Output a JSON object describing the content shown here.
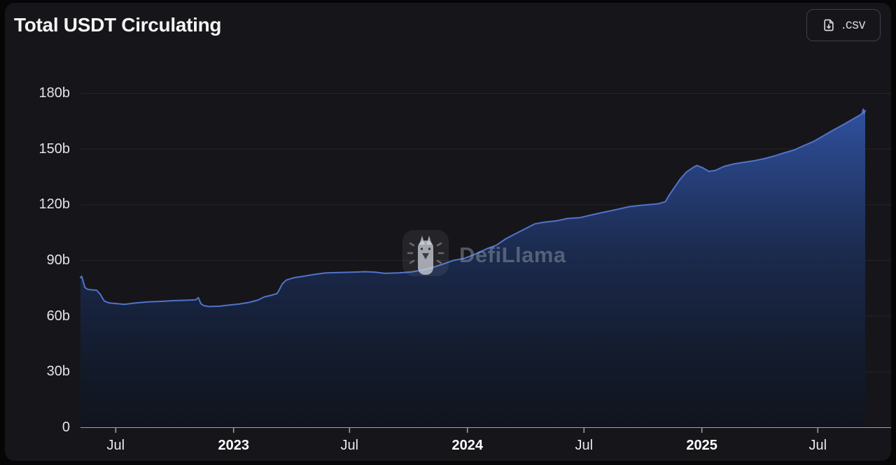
{
  "header": {
    "title": "Total USDT Circulating",
    "csv_button_label": ".csv"
  },
  "watermark": {
    "label": "DefiLlama"
  },
  "colors": {
    "card_bg": "#16161a",
    "title": "#f4f4f5",
    "line": "#5273cb",
    "area_top": "#30519e",
    "area_mid": "#1b2a4e",
    "area_low": "#131b2c",
    "area_bottom": "#10141d",
    "axis": "#a1a1aa",
    "grid": "#232329",
    "tick_label": "#e4e4e7"
  },
  "chart_data": {
    "type": "area",
    "title": "Total USDT Circulating",
    "xlabel": "",
    "ylabel": "",
    "unit": "billion USD",
    "ylim": [
      0,
      180
    ],
    "grid": true,
    "legend": false,
    "x_domain": [
      "2022-05-07",
      "2025-09-13"
    ],
    "y_ticks": [
      {
        "value": 0,
        "label": "0"
      },
      {
        "value": 30,
        "label": "30b"
      },
      {
        "value": 60,
        "label": "60b"
      },
      {
        "value": 90,
        "label": "90b"
      },
      {
        "value": 120,
        "label": "120b"
      },
      {
        "value": 150,
        "label": "150b"
      },
      {
        "value": 180,
        "label": "180b"
      }
    ],
    "x_ticks": [
      {
        "date": "2022-07-01",
        "label": "Jul",
        "bold": false
      },
      {
        "date": "2023-01-01",
        "label": "2023",
        "bold": true
      },
      {
        "date": "2023-07-01",
        "label": "Jul",
        "bold": false
      },
      {
        "date": "2024-01-01",
        "label": "2024",
        "bold": true
      },
      {
        "date": "2024-07-01",
        "label": "Jul",
        "bold": false
      },
      {
        "date": "2025-01-01",
        "label": "2025",
        "bold": true
      },
      {
        "date": "2025-07-01",
        "label": "Jul",
        "bold": false
      }
    ],
    "series": [
      {
        "name": "Total USDT Circulating",
        "points": [
          [
            "2022-05-07",
            80.6
          ],
          [
            "2022-05-09",
            81.3
          ],
          [
            "2022-05-12",
            77.5
          ],
          [
            "2022-05-14",
            75.2
          ],
          [
            "2022-05-18",
            74.3
          ],
          [
            "2022-05-24",
            74.0
          ],
          [
            "2022-06-01",
            73.8
          ],
          [
            "2022-06-07",
            71.5
          ],
          [
            "2022-06-13",
            68.0
          ],
          [
            "2022-06-20",
            67.0
          ],
          [
            "2022-07-01",
            66.6
          ],
          [
            "2022-07-15",
            66.2
          ],
          [
            "2022-08-01",
            66.9
          ],
          [
            "2022-08-20",
            67.5
          ],
          [
            "2022-09-10",
            67.8
          ],
          [
            "2022-10-01",
            68.2
          ],
          [
            "2022-10-20",
            68.4
          ],
          [
            "2022-11-03",
            68.6
          ],
          [
            "2022-11-07",
            69.8
          ],
          [
            "2022-11-11",
            66.5
          ],
          [
            "2022-11-16",
            65.4
          ],
          [
            "2022-11-24",
            65.0
          ],
          [
            "2022-12-10",
            65.2
          ],
          [
            "2022-12-25",
            65.8
          ],
          [
            "2023-01-10",
            66.4
          ],
          [
            "2023-01-25",
            67.2
          ],
          [
            "2023-02-08",
            68.5
          ],
          [
            "2023-02-18",
            70.2
          ],
          [
            "2023-02-28",
            71.0
          ],
          [
            "2023-03-10",
            72.0
          ],
          [
            "2023-03-14",
            74.5
          ],
          [
            "2023-03-18",
            77.2
          ],
          [
            "2023-03-24",
            79.2
          ],
          [
            "2023-04-05",
            80.5
          ],
          [
            "2023-04-20",
            81.3
          ],
          [
            "2023-05-05",
            82.2
          ],
          [
            "2023-05-25",
            83.1
          ],
          [
            "2023-06-15",
            83.3
          ],
          [
            "2023-07-05",
            83.5
          ],
          [
            "2023-07-25",
            83.8
          ],
          [
            "2023-08-10",
            83.5
          ],
          [
            "2023-08-25",
            82.9
          ],
          [
            "2023-09-15",
            83.1
          ],
          [
            "2023-10-05",
            83.6
          ],
          [
            "2023-10-25",
            84.8
          ],
          [
            "2023-11-10",
            86.3
          ],
          [
            "2023-11-25",
            88.0
          ],
          [
            "2023-12-10",
            89.8
          ],
          [
            "2023-12-28",
            91.0
          ],
          [
            "2024-01-15",
            93.5
          ],
          [
            "2024-02-01",
            96.2
          ],
          [
            "2024-02-15",
            98.0
          ],
          [
            "2024-03-01",
            101.5
          ],
          [
            "2024-03-15",
            104.0
          ],
          [
            "2024-04-01",
            107.0
          ],
          [
            "2024-04-15",
            109.5
          ],
          [
            "2024-05-01",
            110.5
          ],
          [
            "2024-05-20",
            111.2
          ],
          [
            "2024-06-05",
            112.4
          ],
          [
            "2024-06-25",
            112.9
          ],
          [
            "2024-07-15",
            114.5
          ],
          [
            "2024-08-01",
            115.8
          ],
          [
            "2024-08-20",
            117.2
          ],
          [
            "2024-09-10",
            118.8
          ],
          [
            "2024-10-01",
            119.6
          ],
          [
            "2024-10-25",
            120.3
          ],
          [
            "2024-11-05",
            121.5
          ],
          [
            "2024-11-12",
            125.5
          ],
          [
            "2024-11-20",
            129.5
          ],
          [
            "2024-11-28",
            133.5
          ],
          [
            "2024-12-08",
            137.5
          ],
          [
            "2024-12-18",
            139.8
          ],
          [
            "2024-12-24",
            141.0
          ],
          [
            "2025-01-02",
            139.8
          ],
          [
            "2025-01-12",
            137.8
          ],
          [
            "2025-01-22",
            138.3
          ],
          [
            "2025-02-05",
            140.5
          ],
          [
            "2025-02-20",
            141.8
          ],
          [
            "2025-03-10",
            142.8
          ],
          [
            "2025-03-25",
            143.6
          ],
          [
            "2025-04-10",
            144.8
          ],
          [
            "2025-04-25",
            146.2
          ],
          [
            "2025-05-10",
            147.8
          ],
          [
            "2025-05-25",
            149.3
          ],
          [
            "2025-06-10",
            151.8
          ],
          [
            "2025-06-25",
            154.0
          ],
          [
            "2025-07-10",
            157.0
          ],
          [
            "2025-07-25",
            160.0
          ],
          [
            "2025-08-10",
            163.0
          ],
          [
            "2025-08-25",
            166.0
          ],
          [
            "2025-09-04",
            168.0
          ],
          [
            "2025-09-08",
            168.8
          ],
          [
            "2025-09-10",
            171.3
          ],
          [
            "2025-09-11",
            168.8
          ],
          [
            "2025-09-13",
            170.6
          ]
        ]
      }
    ]
  }
}
